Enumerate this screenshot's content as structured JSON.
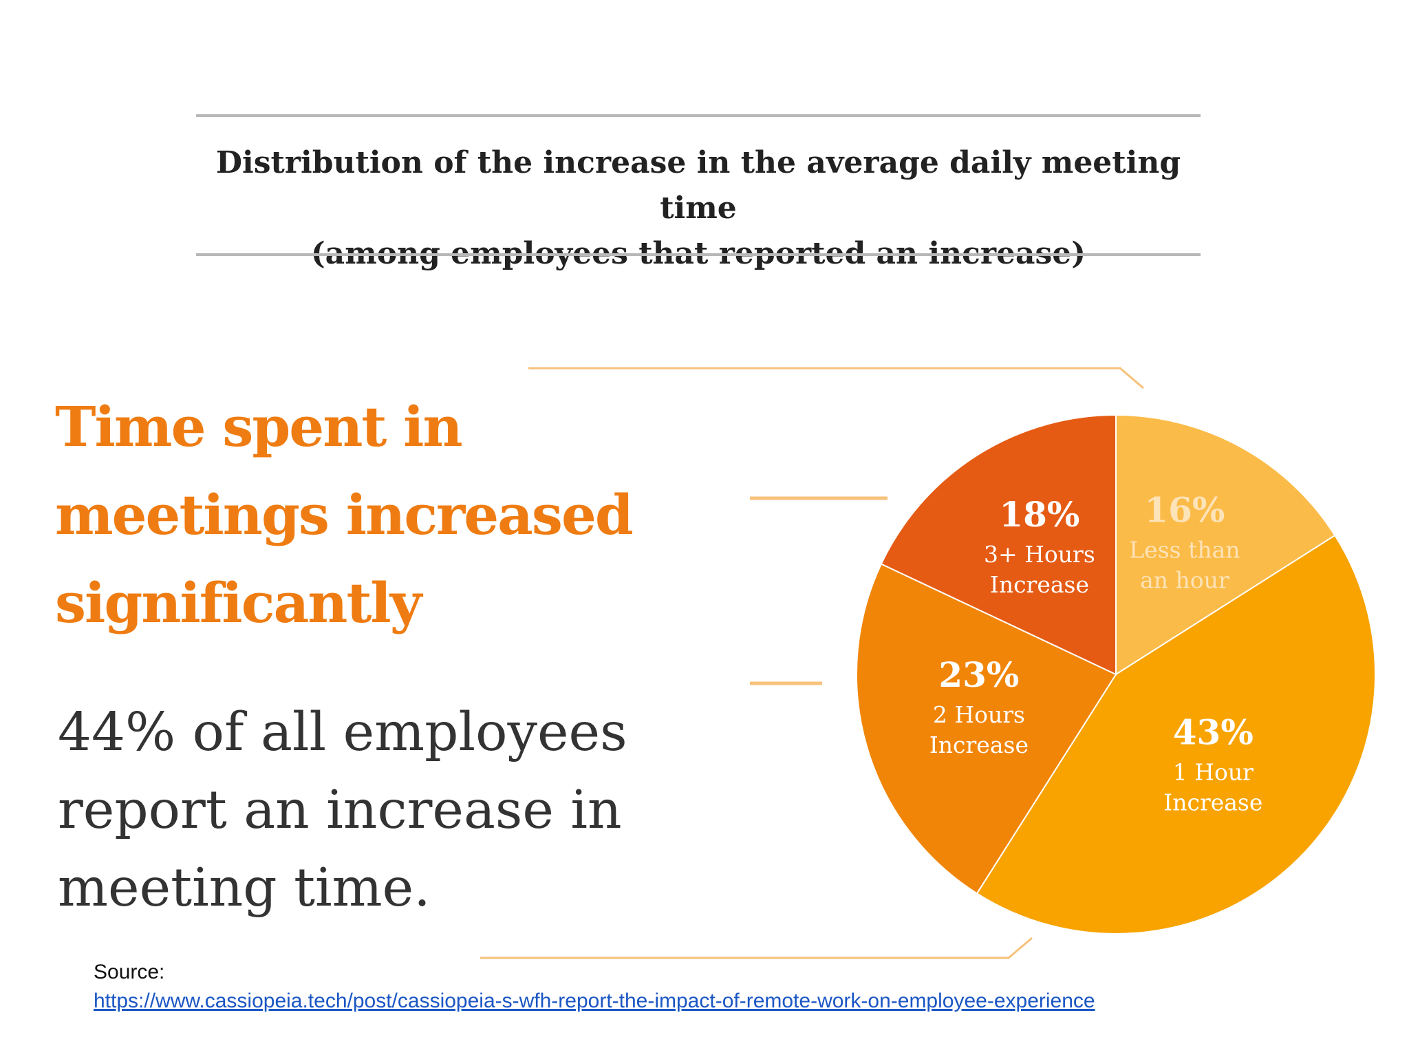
{
  "header": {
    "title_line1": "Distribution of the increase in the average daily meeting time",
    "title_line2": "(among employees that reported an increase)"
  },
  "headline": {
    "line1": "Time spent in",
    "line2": "meetings increased",
    "line3": "significantly"
  },
  "subtext": {
    "line1": "44% of all employees",
    "line2": "report an increase in",
    "line3": "meeting time."
  },
  "source": {
    "label": "Source:",
    "url": "https://www.cassiopeia.tech/post/cassiopeia-s-wfh-report-the-impact-of-remote-work-on-employee-experience"
  },
  "colors": {
    "accent": "#ef7c12",
    "line_accent": "#f6c27a"
  },
  "chart_data": {
    "type": "pie",
    "title": "Distribution of the increase in the average daily meeting time (among employees that reported an increase)",
    "slices": [
      {
        "value": 16,
        "pct_label": "16%",
        "label_lines": [
          "Less than",
          "an hour"
        ],
        "color": "#fbbb48",
        "text_color": "#fde3b8"
      },
      {
        "value": 43,
        "pct_label": "43%",
        "label_lines": [
          "1 Hour",
          "Increase"
        ],
        "color": "#f8a300",
        "text_color": "#ffffff"
      },
      {
        "value": 23,
        "pct_label": "23%",
        "label_lines": [
          "2 Hours",
          "Increase"
        ],
        "color": "#f18508",
        "text_color": "#ffffff"
      },
      {
        "value": 18,
        "pct_label": "18%",
        "label_lines": [
          "3+ Hours",
          "Increase"
        ],
        "color": "#e55b14",
        "text_color": "#ffffff"
      }
    ]
  }
}
